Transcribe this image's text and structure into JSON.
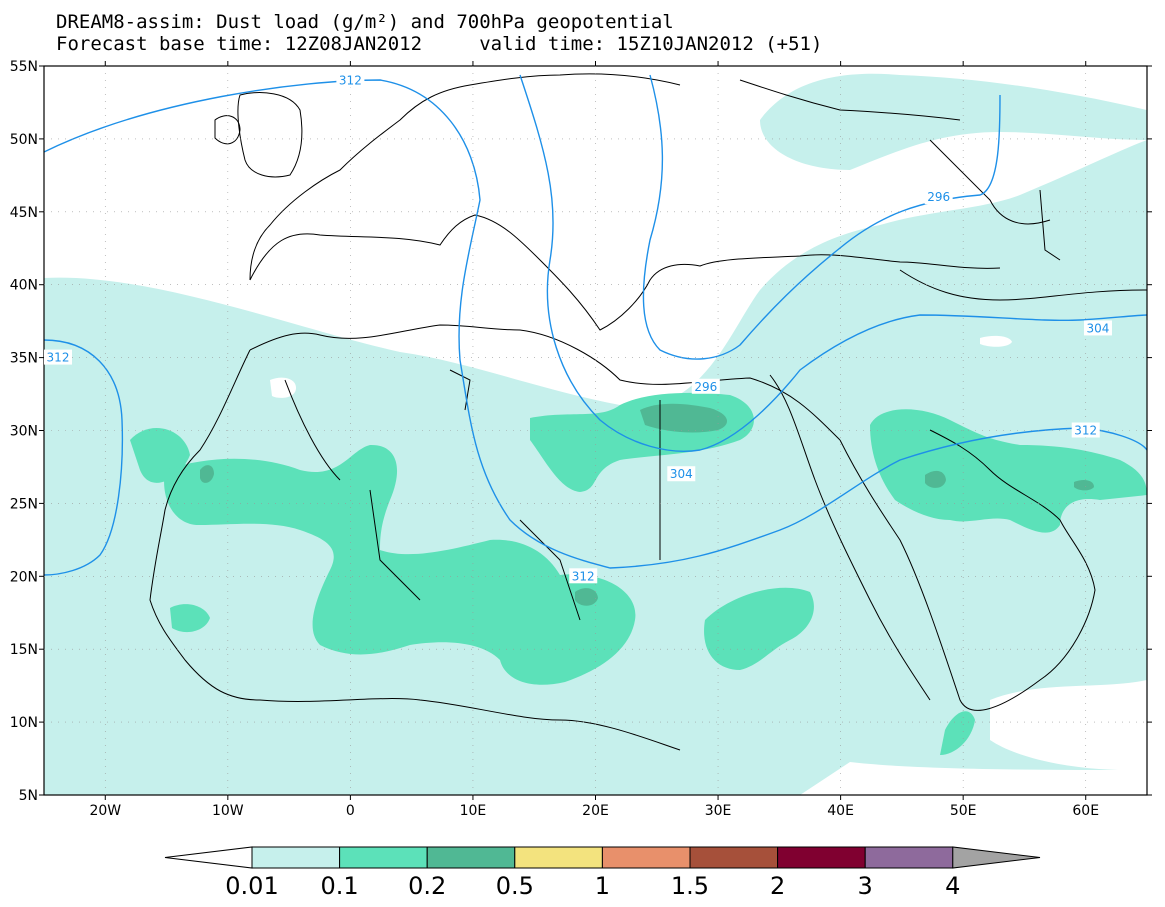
{
  "header": {
    "line1": "DREAM8-assim: Dust load (g/m²) and 700hPa geopotential",
    "line2": "Forecast base time: 12Z08JAN2012     valid time: 15Z10JAN2012 (+51)"
  },
  "map": {
    "lon_range": [
      -25,
      65
    ],
    "lat_range": [
      5,
      55
    ],
    "lat_ticks": [
      {
        "value": 55,
        "label": "55N"
      },
      {
        "value": 50,
        "label": "50N"
      },
      {
        "value": 45,
        "label": "45N"
      },
      {
        "value": 40,
        "label": "40N"
      },
      {
        "value": 35,
        "label": "35N"
      },
      {
        "value": 30,
        "label": "30N"
      },
      {
        "value": 25,
        "label": "25N"
      },
      {
        "value": 20,
        "label": "20N"
      },
      {
        "value": 15,
        "label": "15N"
      },
      {
        "value": 10,
        "label": "10N"
      },
      {
        "value": 5,
        "label": "5N"
      }
    ],
    "lon_ticks": [
      {
        "value": -20,
        "label": "20W"
      },
      {
        "value": -10,
        "label": "10W"
      },
      {
        "value": 0,
        "label": "0"
      },
      {
        "value": 10,
        "label": "10E"
      },
      {
        "value": 20,
        "label": "20E"
      },
      {
        "value": 30,
        "label": "30E"
      },
      {
        "value": 40,
        "label": "40E"
      },
      {
        "value": 50,
        "label": "50E"
      },
      {
        "value": 60,
        "label": "60E"
      }
    ],
    "contour_color": "#1e90e8",
    "contour_labels": [
      {
        "text": "312",
        "lon": -25,
        "lat": 35
      },
      {
        "text": "312",
        "lon": 0,
        "lat": 54
      },
      {
        "text": "312",
        "lon": 19,
        "lat": 20
      },
      {
        "text": "304",
        "lon": 27,
        "lat": 27
      },
      {
        "text": "296",
        "lon": 29,
        "lat": 33
      },
      {
        "text": "296",
        "lon": 48,
        "lat": 46
      },
      {
        "text": "304",
        "lon": 61,
        "lat": 37
      },
      {
        "text": "312",
        "lon": 60,
        "lat": 30
      }
    ]
  },
  "legend": {
    "levels": [
      "0.01",
      "0.1",
      "0.2",
      "0.5",
      "1",
      "1.5",
      "2",
      "3",
      "4"
    ],
    "colors": [
      "#c6f0ec",
      "#5ce1b9",
      "#50b894",
      "#f3e37e",
      "#e8906b",
      "#a6503a",
      "#800030",
      "#8e6a9c",
      "#a3a3a3"
    ],
    "outline_color": "#000000"
  }
}
